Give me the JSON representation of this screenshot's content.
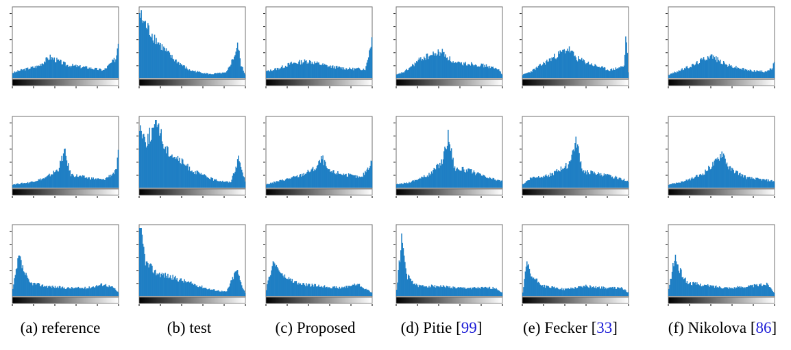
{
  "colors": {
    "bar": "#1f7fc4",
    "frame": "#6f6f6f",
    "background": "#ffffff",
    "citation": "#1a1ad6"
  },
  "captions": [
    {
      "letter": "(a)",
      "text": "reference",
      "ref": ""
    },
    {
      "letter": "(b)",
      "text": "test",
      "ref": ""
    },
    {
      "letter": "(c)",
      "text": "Proposed",
      "ref": ""
    },
    {
      "letter": "(d)",
      "text": "Pitie",
      "ref": "99"
    },
    {
      "letter": "(e)",
      "text": "Fecker",
      "ref": "33"
    },
    {
      "letter": "(f)",
      "text": "Nikolova",
      "ref": "86"
    }
  ],
  "chart_data": {
    "type": "bar",
    "description_of_grid": "3 rows x 6 columns of intensity histograms with grayscale gradient bars under x-axis",
    "x_range": [
      0,
      255
    ],
    "y_range": [
      0,
      1
    ],
    "panels": [
      [
        {
          "column": "(a) reference",
          "peaks": [
            [
              0,
              0.08
            ],
            [
              20,
              0.12
            ],
            [
              60,
              0.18
            ],
            [
              90,
              0.32
            ],
            [
              130,
              0.2
            ],
            [
              180,
              0.16
            ],
            [
              220,
              0.12
            ],
            [
              250,
              0.3
            ],
            [
              255,
              0.6
            ]
          ]
        },
        {
          "column": "(b) test",
          "peaks": [
            [
              0,
              0.98
            ],
            [
              5,
              0.9
            ],
            [
              20,
              0.75
            ],
            [
              50,
              0.5
            ],
            [
              80,
              0.3
            ],
            [
              120,
              0.12
            ],
            [
              170,
              0.06
            ],
            [
              210,
              0.08
            ],
            [
              230,
              0.35
            ],
            [
              238,
              0.5
            ],
            [
              245,
              0.2
            ],
            [
              255,
              0.06
            ]
          ]
        },
        {
          "column": "(c) Proposed",
          "peaks": [
            [
              0,
              0.1
            ],
            [
              30,
              0.15
            ],
            [
              60,
              0.22
            ],
            [
              100,
              0.26
            ],
            [
              150,
              0.18
            ],
            [
              200,
              0.14
            ],
            [
              240,
              0.14
            ],
            [
              255,
              0.6
            ]
          ]
        },
        {
          "column": "(d) Pitie",
          "peaks": [
            [
              0,
              0.05
            ],
            [
              20,
              0.1
            ],
            [
              60,
              0.3
            ],
            [
              90,
              0.36
            ],
            [
              110,
              0.4
            ],
            [
              140,
              0.22
            ],
            [
              180,
              0.22
            ],
            [
              220,
              0.18
            ],
            [
              250,
              0.12
            ],
            [
              255,
              0.05
            ]
          ]
        },
        {
          "column": "(e) Fecker",
          "peaks": [
            [
              0,
              0.05
            ],
            [
              20,
              0.1
            ],
            [
              70,
              0.3
            ],
            [
              110,
              0.45
            ],
            [
              130,
              0.3
            ],
            [
              170,
              0.2
            ],
            [
              210,
              0.12
            ],
            [
              245,
              0.18
            ],
            [
              250,
              0.7
            ],
            [
              255,
              0.1
            ]
          ]
        },
        {
          "column": "(f) Nikolova",
          "peaks": [
            [
              0,
              0.05
            ],
            [
              20,
              0.1
            ],
            [
              60,
              0.2
            ],
            [
              100,
              0.35
            ],
            [
              140,
              0.2
            ],
            [
              190,
              0.12
            ],
            [
              230,
              0.1
            ],
            [
              250,
              0.14
            ],
            [
              255,
              0.25
            ]
          ]
        }
      ],
      [
        {
          "column": "(a) reference",
          "peaks": [
            [
              0,
              0.05
            ],
            [
              40,
              0.08
            ],
            [
              80,
              0.15
            ],
            [
              110,
              0.28
            ],
            [
              125,
              0.55
            ],
            [
              140,
              0.2
            ],
            [
              180,
              0.15
            ],
            [
              220,
              0.12
            ],
            [
              250,
              0.25
            ],
            [
              255,
              0.5
            ]
          ]
        },
        {
          "column": "(b) test",
          "peaks": [
            [
              0,
              0.95
            ],
            [
              15,
              0.7
            ],
            [
              30,
              0.85
            ],
            [
              45,
              1.0
            ],
            [
              60,
              0.6
            ],
            [
              90,
              0.45
            ],
            [
              130,
              0.25
            ],
            [
              180,
              0.12
            ],
            [
              220,
              0.08
            ],
            [
              240,
              0.45
            ],
            [
              248,
              0.25
            ],
            [
              255,
              0.1
            ]
          ]
        },
        {
          "column": "(c) Proposed",
          "peaks": [
            [
              0,
              0.05
            ],
            [
              30,
              0.1
            ],
            [
              80,
              0.18
            ],
            [
              120,
              0.3
            ],
            [
              135,
              0.45
            ],
            [
              150,
              0.25
            ],
            [
              190,
              0.2
            ],
            [
              230,
              0.15
            ],
            [
              255,
              0.4
            ]
          ]
        },
        {
          "column": "(d) Pitie",
          "peaks": [
            [
              0,
              0.05
            ],
            [
              30,
              0.08
            ],
            [
              80,
              0.2
            ],
            [
              110,
              0.4
            ],
            [
              125,
              0.8
            ],
            [
              140,
              0.3
            ],
            [
              180,
              0.25
            ],
            [
              220,
              0.15
            ],
            [
              255,
              0.1
            ]
          ]
        },
        {
          "column": "(e) Fecker",
          "peaks": [
            [
              0,
              0.05
            ],
            [
              20,
              0.15
            ],
            [
              70,
              0.2
            ],
            [
              110,
              0.35
            ],
            [
              130,
              0.7
            ],
            [
              145,
              0.25
            ],
            [
              190,
              0.2
            ],
            [
              230,
              0.15
            ],
            [
              255,
              0.1
            ]
          ]
        },
        {
          "column": "(f) Nikolova",
          "peaks": [
            [
              0,
              0.05
            ],
            [
              40,
              0.1
            ],
            [
              80,
              0.2
            ],
            [
              115,
              0.4
            ],
            [
              130,
              0.55
            ],
            [
              145,
              0.3
            ],
            [
              190,
              0.15
            ],
            [
              230,
              0.12
            ],
            [
              255,
              0.1
            ]
          ]
        }
      ],
      [
        {
          "column": "(a) reference",
          "peaks": [
            [
              0,
              0.1
            ],
            [
              15,
              0.6
            ],
            [
              25,
              0.4
            ],
            [
              40,
              0.2
            ],
            [
              80,
              0.15
            ],
            [
              130,
              0.12
            ],
            [
              180,
              0.12
            ],
            [
              220,
              0.18
            ],
            [
              245,
              0.12
            ],
            [
              255,
              0.05
            ]
          ]
        },
        {
          "column": "(b) test",
          "peaks": [
            [
              0,
              1.0
            ],
            [
              5,
              0.9
            ],
            [
              15,
              0.5
            ],
            [
              40,
              0.35
            ],
            [
              80,
              0.28
            ],
            [
              120,
              0.2
            ],
            [
              170,
              0.1
            ],
            [
              210,
              0.06
            ],
            [
              235,
              0.4
            ],
            [
              245,
              0.2
            ],
            [
              255,
              0.05
            ]
          ]
        },
        {
          "column": "(c) Proposed",
          "peaks": [
            [
              0,
              0.1
            ],
            [
              15,
              0.5
            ],
            [
              25,
              0.45
            ],
            [
              40,
              0.3
            ],
            [
              80,
              0.18
            ],
            [
              130,
              0.15
            ],
            [
              180,
              0.12
            ],
            [
              220,
              0.18
            ],
            [
              255,
              0.05
            ]
          ]
        },
        {
          "column": "(d) Pitie",
          "peaks": [
            [
              0,
              0.1
            ],
            [
              12,
              0.85
            ],
            [
              25,
              0.3
            ],
            [
              50,
              0.15
            ],
            [
              100,
              0.15
            ],
            [
              150,
              0.12
            ],
            [
              200,
              0.12
            ],
            [
              240,
              0.12
            ],
            [
              255,
              0.05
            ]
          ]
        },
        {
          "column": "(e) Fecker",
          "peaks": [
            [
              0,
              0.05
            ],
            [
              10,
              0.5
            ],
            [
              20,
              0.3
            ],
            [
              50,
              0.15
            ],
            [
              100,
              0.1
            ],
            [
              150,
              0.15
            ],
            [
              200,
              0.12
            ],
            [
              240,
              0.12
            ],
            [
              255,
              0.05
            ]
          ]
        },
        {
          "column": "(f) Nikolova",
          "peaks": [
            [
              0,
              0.1
            ],
            [
              15,
              0.6
            ],
            [
              25,
              0.4
            ],
            [
              45,
              0.2
            ],
            [
              100,
              0.15
            ],
            [
              150,
              0.12
            ],
            [
              200,
              0.15
            ],
            [
              240,
              0.18
            ],
            [
              255,
              0.05
            ]
          ]
        }
      ]
    ]
  }
}
